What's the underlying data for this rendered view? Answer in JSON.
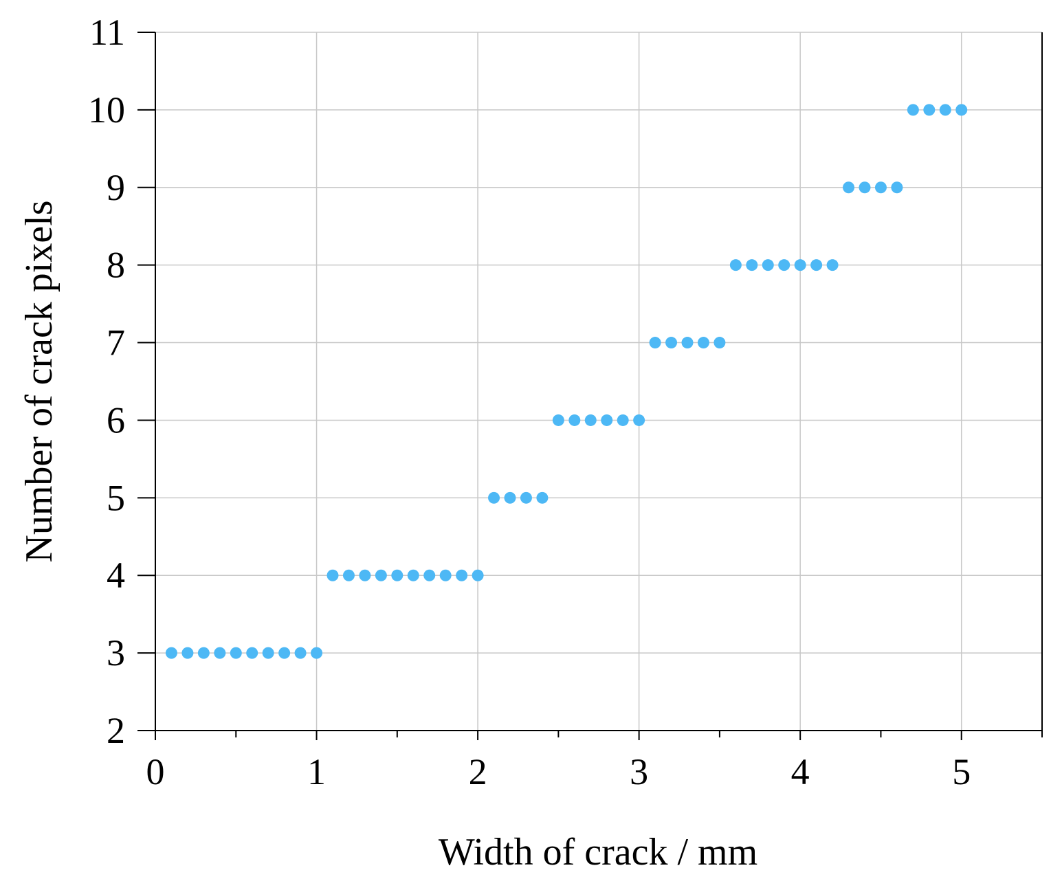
{
  "chart_data": {
    "type": "scatter",
    "title": "",
    "xlabel": "Width of crack / mm",
    "ylabel": "Number of crack pixels",
    "xlim": [
      0,
      5.5
    ],
    "ylim": [
      2,
      11
    ],
    "x_ticks": [
      0,
      1,
      2,
      3,
      4,
      5
    ],
    "x_minor_ticks": [
      0.5,
      1.5,
      2.5,
      3.5,
      4.5,
      5.5
    ],
    "y_ticks": [
      2,
      3,
      4,
      5,
      6,
      7,
      8,
      9,
      10,
      11
    ],
    "grid": true,
    "legend": "none",
    "marker_color": "#4DB8F5",
    "series": [
      {
        "x": [
          0.1,
          0.2,
          0.3,
          0.4,
          0.5,
          0.6,
          0.7,
          0.8,
          0.9,
          1.0,
          1.1,
          1.2,
          1.3,
          1.4,
          1.5,
          1.6,
          1.7,
          1.8,
          1.9,
          2.0,
          2.1,
          2.2,
          2.3,
          2.4,
          2.5,
          2.6,
          2.7,
          2.8,
          2.9,
          3.0,
          3.1,
          3.2,
          3.3,
          3.4,
          3.5,
          3.6,
          3.7,
          3.8,
          3.9,
          4.0,
          4.1,
          4.2,
          4.3,
          4.4,
          4.5,
          4.6,
          4.7,
          4.8,
          4.9,
          5.0
        ],
        "y": [
          3,
          3,
          3,
          3,
          3,
          3,
          3,
          3,
          3,
          3,
          4,
          4,
          4,
          4,
          4,
          4,
          4,
          4,
          4,
          4,
          5,
          5,
          5,
          5,
          6,
          6,
          6,
          6,
          6,
          6,
          7,
          7,
          7,
          7,
          7,
          8,
          8,
          8,
          8,
          8,
          8,
          8,
          9,
          9,
          9,
          9,
          10,
          10,
          10,
          10
        ]
      }
    ]
  }
}
